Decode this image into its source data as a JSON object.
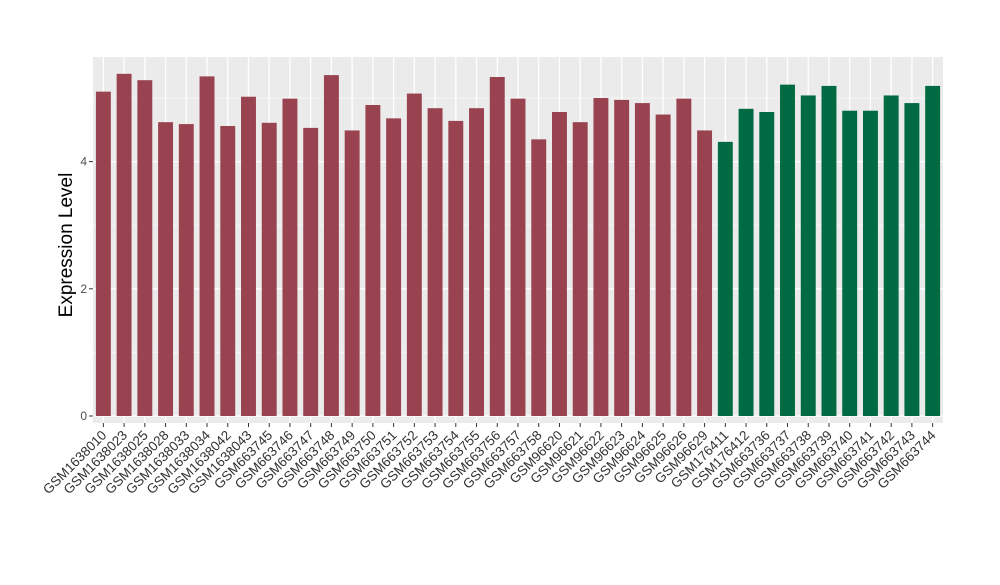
{
  "chart_data": {
    "type": "bar",
    "title": "",
    "xlabel": "",
    "ylabel": "Expression Level",
    "ylim": [
      0,
      5.55
    ],
    "yticks": [
      0,
      2,
      4
    ],
    "grid": true,
    "legend": "none",
    "categories": [
      "GSM1638010",
      "GSM1638023",
      "GSM1638025",
      "GSM1638028",
      "GSM1638033",
      "GSM1638034",
      "GSM1638042",
      "GSM1638043",
      "GSM663745",
      "GSM663746",
      "GSM663747",
      "GSM663748",
      "GSM663749",
      "GSM663750",
      "GSM663751",
      "GSM663752",
      "GSM663753",
      "GSM663754",
      "GSM663755",
      "GSM663756",
      "GSM663757",
      "GSM663758",
      "GSM96620",
      "GSM96621",
      "GSM96622",
      "GSM96623",
      "GSM96624",
      "GSM96625",
      "GSM96626",
      "GSM96629",
      "GSM176411",
      "GSM176412",
      "GSM663736",
      "GSM663737",
      "GSM663738",
      "GSM663739",
      "GSM663740",
      "GSM663741",
      "GSM663742",
      "GSM663743",
      "GSM663744"
    ],
    "values": [
      5.1,
      5.38,
      5.28,
      4.62,
      4.59,
      5.34,
      4.56,
      5.02,
      4.61,
      4.99,
      4.53,
      5.36,
      4.49,
      4.89,
      4.68,
      5.07,
      4.84,
      4.64,
      4.84,
      5.33,
      4.99,
      4.35,
      4.78,
      4.62,
      5.0,
      4.97,
      4.92,
      4.74,
      4.99,
      4.49,
      4.31,
      4.83,
      4.78,
      5.21,
      5.04,
      5.19,
      4.8,
      4.8,
      5.04,
      4.92,
      5.19
    ],
    "groups": [
      "a",
      "a",
      "a",
      "a",
      "a",
      "a",
      "a",
      "a",
      "a",
      "a",
      "a",
      "a",
      "a",
      "a",
      "a",
      "a",
      "a",
      "a",
      "a",
      "a",
      "a",
      "a",
      "a",
      "a",
      "a",
      "a",
      "a",
      "a",
      "a",
      "a",
      "b",
      "b",
      "b",
      "b",
      "b",
      "b",
      "b",
      "b",
      "b",
      "b",
      "b"
    ],
    "colors": {
      "a": "#9a4350",
      "b": "#006a43",
      "panel": "#ebebeb",
      "grid_major": "#ffffff",
      "grid_minor": "#f5f5f5",
      "axis_text": "#4d4d4d"
    }
  }
}
